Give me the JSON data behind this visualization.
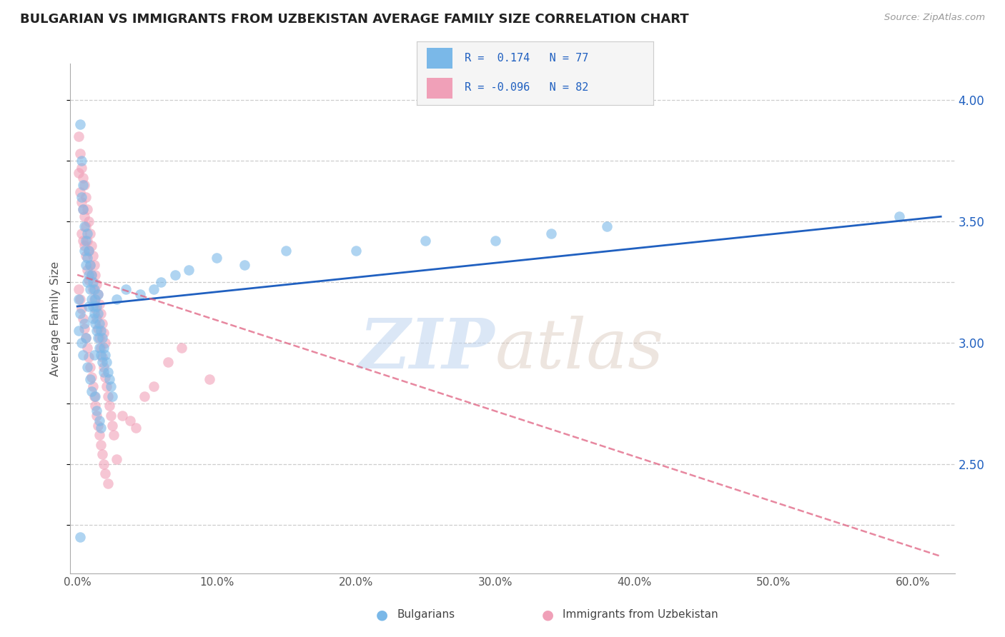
{
  "title": "BULGARIAN VS IMMIGRANTS FROM UZBEKISTAN AVERAGE FAMILY SIZE CORRELATION CHART",
  "source_text": "Source: ZipAtlas.com",
  "ylabel": "Average Family Size",
  "bg_color": "#ffffff",
  "grid_color": "#c8c8c8",
  "blue_color": "#7ab8e8",
  "pink_color": "#f0a0b8",
  "blue_line_color": "#2060c0",
  "pink_line_color": "#e06080",
  "right_axis_color": "#2060c0",
  "tick_color": "#555555",
  "x_ticks": [
    0.0,
    0.1,
    0.2,
    0.3,
    0.4,
    0.5,
    0.6
  ],
  "x_tick_labels": [
    "0.0%",
    "10.0%",
    "20.0%",
    "30.0%",
    "40.0%",
    "50.0%",
    "60.0%"
  ],
  "y_ticks_right": [
    2.5,
    3.0,
    3.5,
    4.0
  ],
  "ylim": [
    2.05,
    4.15
  ],
  "xlim": [
    -0.005,
    0.63
  ],
  "blue_trend": [
    0.0,
    0.62,
    3.15,
    3.52
  ],
  "pink_trend": [
    0.0,
    0.62,
    3.28,
    2.12
  ],
  "bulgarians_x": [
    0.002,
    0.003,
    0.003,
    0.004,
    0.004,
    0.005,
    0.005,
    0.006,
    0.006,
    0.007,
    0.007,
    0.007,
    0.008,
    0.008,
    0.009,
    0.009,
    0.01,
    0.01,
    0.011,
    0.011,
    0.012,
    0.012,
    0.013,
    0.013,
    0.014,
    0.014,
    0.015,
    0.015,
    0.016,
    0.016,
    0.017,
    0.017,
    0.018,
    0.018,
    0.019,
    0.019,
    0.02,
    0.021,
    0.022,
    0.023,
    0.024,
    0.025,
    0.001,
    0.001,
    0.002,
    0.003,
    0.004,
    0.005,
    0.006,
    0.007,
    0.008,
    0.009,
    0.01,
    0.011,
    0.012,
    0.013,
    0.014,
    0.015,
    0.016,
    0.017,
    0.028,
    0.035,
    0.045,
    0.055,
    0.06,
    0.07,
    0.08,
    0.1,
    0.12,
    0.15,
    0.2,
    0.25,
    0.3,
    0.34,
    0.38,
    0.59,
    0.002
  ],
  "bulgarians_y": [
    3.9,
    3.75,
    3.6,
    3.65,
    3.55,
    3.48,
    3.38,
    3.42,
    3.32,
    3.45,
    3.35,
    3.25,
    3.38,
    3.28,
    3.32,
    3.22,
    3.28,
    3.18,
    3.25,
    3.15,
    3.22,
    3.12,
    3.18,
    3.08,
    3.15,
    3.05,
    3.12,
    3.02,
    3.08,
    2.98,
    3.05,
    2.95,
    3.02,
    2.92,
    2.98,
    2.88,
    2.95,
    2.92,
    2.88,
    2.85,
    2.82,
    2.78,
    3.18,
    3.05,
    3.12,
    3.0,
    2.95,
    3.08,
    3.02,
    2.9,
    3.15,
    2.85,
    2.8,
    3.1,
    2.95,
    2.78,
    2.72,
    3.2,
    2.68,
    2.65,
    3.18,
    3.22,
    3.2,
    3.22,
    3.25,
    3.28,
    3.3,
    3.35,
    3.32,
    3.38,
    3.38,
    3.42,
    3.42,
    3.45,
    3.48,
    3.52,
    2.2
  ],
  "uzbekistan_x": [
    0.001,
    0.001,
    0.002,
    0.002,
    0.003,
    0.003,
    0.003,
    0.004,
    0.004,
    0.004,
    0.005,
    0.005,
    0.005,
    0.006,
    0.006,
    0.006,
    0.007,
    0.007,
    0.007,
    0.008,
    0.008,
    0.008,
    0.009,
    0.009,
    0.01,
    0.01,
    0.011,
    0.011,
    0.012,
    0.012,
    0.013,
    0.013,
    0.014,
    0.014,
    0.015,
    0.015,
    0.016,
    0.016,
    0.017,
    0.017,
    0.018,
    0.018,
    0.019,
    0.019,
    0.02,
    0.02,
    0.021,
    0.022,
    0.023,
    0.024,
    0.025,
    0.026,
    0.001,
    0.002,
    0.003,
    0.004,
    0.005,
    0.006,
    0.007,
    0.008,
    0.009,
    0.01,
    0.011,
    0.012,
    0.013,
    0.014,
    0.015,
    0.016,
    0.017,
    0.018,
    0.019,
    0.02,
    0.022,
    0.028,
    0.032,
    0.038,
    0.042,
    0.048,
    0.055,
    0.065,
    0.075,
    0.095
  ],
  "uzbekistan_y": [
    3.85,
    3.7,
    3.78,
    3.62,
    3.72,
    3.58,
    3.45,
    3.68,
    3.55,
    3.42,
    3.65,
    3.52,
    3.4,
    3.6,
    3.48,
    3.36,
    3.55,
    3.42,
    3.3,
    3.5,
    3.38,
    3.26,
    3.45,
    3.32,
    3.4,
    3.28,
    3.36,
    3.22,
    3.32,
    3.18,
    3.28,
    3.14,
    3.24,
    3.1,
    3.2,
    3.06,
    3.16,
    3.02,
    3.12,
    2.98,
    3.08,
    2.94,
    3.04,
    2.9,
    3.0,
    2.86,
    2.82,
    2.78,
    2.74,
    2.7,
    2.66,
    2.62,
    3.22,
    3.18,
    3.14,
    3.1,
    3.06,
    3.02,
    2.98,
    2.94,
    2.9,
    2.86,
    2.82,
    2.78,
    2.74,
    2.7,
    2.66,
    2.62,
    2.58,
    2.54,
    2.5,
    2.46,
    2.42,
    2.52,
    2.7,
    2.68,
    2.65,
    2.78,
    2.82,
    2.92,
    2.98,
    2.85
  ]
}
